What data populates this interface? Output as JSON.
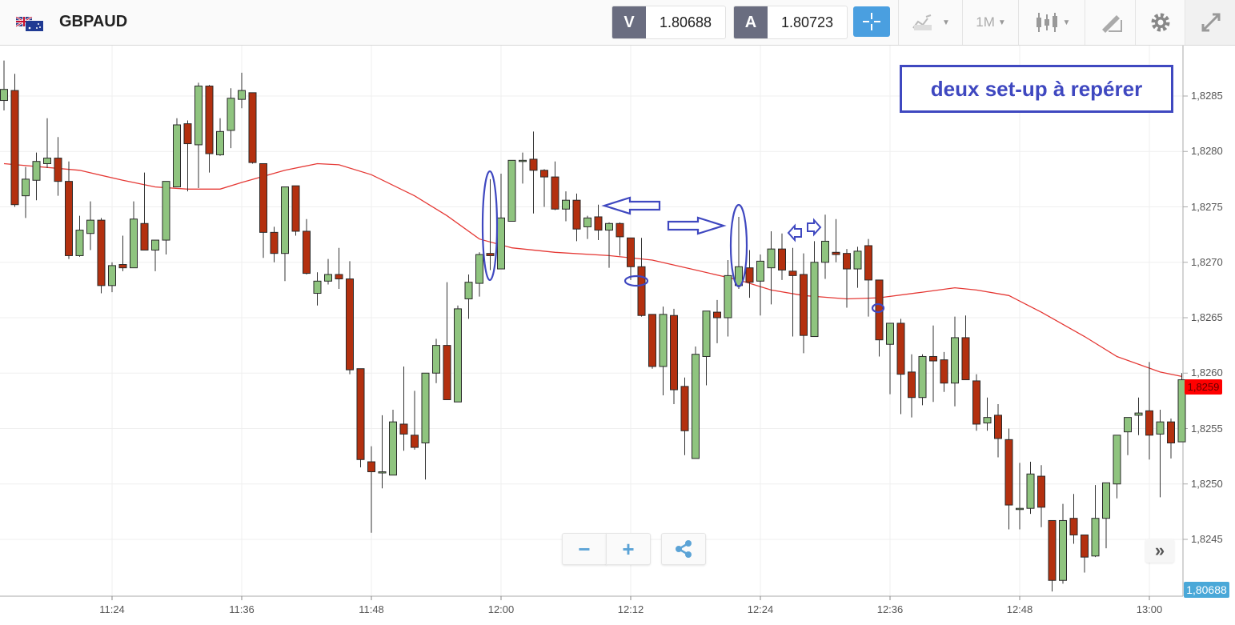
{
  "header": {
    "symbol": "GBPAUD",
    "flag_icon": "gb-au-flag-icon",
    "bid_tag": "V",
    "bid_value": "1.80688",
    "ask_tag": "A",
    "ask_value": "1.80723",
    "timeframe": "1M",
    "icons": [
      "crosshair-icon",
      "chart-type-icon",
      "candlestick-icon",
      "drawing-tool-icon",
      "gear-icon",
      "expand-icon"
    ]
  },
  "controls": {
    "zoom_out": "−",
    "zoom_in": "+",
    "share_icon": "share-icon",
    "scroll_forward": "»"
  },
  "annotation": {
    "text": "deux set-up à repérer",
    "color": "#3f48c0"
  },
  "axis": {
    "price_ticks": [
      "1,8285",
      "1,8280",
      "1,8275",
      "1,8270",
      "1,8265",
      "1,8260",
      "1,8255",
      "1,8250",
      "1,8245"
    ],
    "time_ticks": [
      "11:24",
      "11:36",
      "11:48",
      "12:00",
      "12:12",
      "12:24",
      "12:36",
      "12:48",
      "13:00"
    ],
    "last_price_label": "1,8259",
    "current_rate_label": "1,80688"
  },
  "colors": {
    "up": "#8fc47f",
    "down": "#b3300f",
    "ma": "#e53935",
    "last_price": "#ff0000",
    "accent": "#4a9fe0"
  },
  "chart_data": {
    "type": "candlestick",
    "symbol": "GBPAUD",
    "interval": "1 minute",
    "ylim": [
      1.824,
      1.829
    ],
    "grid": true,
    "columns": [
      "time",
      "open",
      "high",
      "low",
      "close"
    ],
    "candles": [
      [
        "11:14",
        1.82846,
        1.82882,
        1.82837,
        1.82856
      ],
      [
        "11:15",
        1.82855,
        1.8287,
        1.8275,
        1.82752
      ],
      [
        "11:16",
        1.8276,
        1.82786,
        1.8274,
        1.82775
      ],
      [
        "11:17",
        1.82774,
        1.82799,
        1.82756,
        1.82791
      ],
      [
        "11:18",
        1.82789,
        1.8283,
        1.82785,
        1.82794
      ],
      [
        "11:19",
        1.82794,
        1.82813,
        1.8276,
        1.82773
      ],
      [
        "11:20",
        1.82773,
        1.82791,
        1.82703,
        1.82706
      ],
      [
        "11:21",
        1.82706,
        1.82742,
        1.82705,
        1.82729
      ],
      [
        "11:22",
        1.82726,
        1.82755,
        1.82711,
        1.82738
      ],
      [
        "11:23",
        1.82738,
        1.8274,
        1.82672,
        1.82679
      ],
      [
        "11:24",
        1.82679,
        1.827,
        1.82673,
        1.82697
      ],
      [
        "11:25",
        1.82698,
        1.82724,
        1.82692,
        1.82695
      ],
      [
        "11:26",
        1.82695,
        1.82755,
        1.82695,
        1.82739
      ],
      [
        "11:27",
        1.82735,
        1.82781,
        1.82711,
        1.82711
      ],
      [
        "11:28",
        1.82711,
        1.8272,
        1.82692,
        1.8272
      ],
      [
        "11:29",
        1.8272,
        1.82773,
        1.82707,
        1.82773
      ],
      [
        "11:30",
        1.82768,
        1.8283,
        1.82768,
        1.82824
      ],
      [
        "11:31",
        1.82825,
        1.82828,
        1.82764,
        1.82807
      ],
      [
        "11:32",
        1.82806,
        1.82862,
        1.82767,
        1.82859
      ],
      [
        "11:33",
        1.82859,
        1.8286,
        1.82781,
        1.82798
      ],
      [
        "11:34",
        1.82797,
        1.8283,
        1.82796,
        1.82818
      ],
      [
        "11:35",
        1.82819,
        1.82857,
        1.82803,
        1.82848
      ],
      [
        "11:36",
        1.82847,
        1.82871,
        1.82839,
        1.82855
      ],
      [
        "11:37",
        1.82853,
        1.82853,
        1.82789,
        1.8279
      ],
      [
        "11:38",
        1.82789,
        1.82789,
        1.82704,
        1.82727
      ],
      [
        "11:39",
        1.82727,
        1.82732,
        1.827,
        1.82708
      ],
      [
        "11:40",
        1.82708,
        1.82768,
        1.82683,
        1.82768
      ],
      [
        "11:41",
        1.82769,
        1.82769,
        1.82724,
        1.82728
      ],
      [
        "11:42",
        1.82728,
        1.82739,
        1.82689,
        1.8269
      ],
      [
        "11:43",
        1.82672,
        1.82691,
        1.82661,
        1.82683
      ],
      [
        "11:44",
        1.82683,
        1.82703,
        1.8268,
        1.82689
      ],
      [
        "11:45",
        1.82689,
        1.82713,
        1.82676,
        1.82685
      ],
      [
        "11:46",
        1.82685,
        1.82701,
        1.82599,
        1.82603
      ],
      [
        "11:47",
        1.82604,
        1.82604,
        1.82515,
        1.82522
      ],
      [
        "11:48",
        1.8252,
        1.82534,
        1.82456,
        1.82511
      ],
      [
        "11:49",
        1.82511,
        1.82562,
        1.82496,
        1.82511
      ],
      [
        "11:50",
        1.82508,
        1.82567,
        1.82508,
        1.82556
      ],
      [
        "11:51",
        1.82554,
        1.82606,
        1.8253,
        1.82545
      ],
      [
        "11:52",
        1.82544,
        1.82584,
        1.82531,
        1.82533
      ],
      [
        "11:53",
        1.82537,
        1.826,
        1.82504,
        1.826
      ],
      [
        "11:54",
        1.826,
        1.82631,
        1.82591,
        1.82625
      ],
      [
        "11:55",
        1.82625,
        1.82682,
        1.82576,
        1.82576
      ],
      [
        "11:56",
        1.82574,
        1.82661,
        1.82574,
        1.82658
      ],
      [
        "11:57",
        1.82667,
        1.82689,
        1.82649,
        1.82682
      ],
      [
        "11:58",
        1.82681,
        1.82709,
        1.82669,
        1.82707
      ],
      [
        "11:59",
        1.82708,
        1.82775,
        1.82693,
        1.82706
      ],
      [
        "12:00",
        1.82694,
        1.8278,
        1.82694,
        1.8274
      ],
      [
        "12:01",
        1.82737,
        1.82792,
        1.82737,
        1.82792
      ],
      [
        "12:02",
        1.82792,
        1.82799,
        1.82771,
        1.82792
      ],
      [
        "12:03",
        1.82793,
        1.82818,
        1.82744,
        1.82783
      ],
      [
        "12:04",
        1.82783,
        1.82784,
        1.8275,
        1.82777
      ],
      [
        "12:05",
        1.82777,
        1.82791,
        1.82747,
        1.82748
      ],
      [
        "12:06",
        1.82748,
        1.82764,
        1.82737,
        1.82756
      ],
      [
        "12:07",
        1.82756,
        1.82762,
        1.82719,
        1.8273
      ],
      [
        "12:08",
        1.82732,
        1.82742,
        1.82721,
        1.8274
      ],
      [
        "12:09",
        1.82741,
        1.82752,
        1.8272,
        1.82729
      ],
      [
        "12:10",
        1.82729,
        1.82736,
        1.82695,
        1.82735
      ],
      [
        "12:11",
        1.82735,
        1.82736,
        1.82706,
        1.82723
      ],
      [
        "12:12",
        1.82722,
        1.82722,
        1.82684,
        1.82696
      ],
      [
        "12:13",
        1.82696,
        1.82722,
        1.82651,
        1.82652
      ],
      [
        "12:14",
        1.82653,
        1.82653,
        1.82604,
        1.82606
      ],
      [
        "12:15",
        1.82606,
        1.8266,
        1.8258,
        1.82653
      ],
      [
        "12:16",
        1.82652,
        1.82658,
        1.82572,
        1.82585
      ],
      [
        "12:17",
        1.82588,
        1.82596,
        1.82526,
        1.82548
      ],
      [
        "12:18",
        1.82523,
        1.82624,
        1.82523,
        1.82617
      ],
      [
        "12:19",
        1.82615,
        1.82656,
        1.82589,
        1.82656
      ],
      [
        "12:20",
        1.82655,
        1.82666,
        1.82627,
        1.8265
      ],
      [
        "12:21",
        1.8265,
        1.82702,
        1.82633,
        1.82688
      ],
      [
        "12:22",
        1.82679,
        1.82741,
        1.82676,
        1.82696
      ],
      [
        "12:23",
        1.82695,
        1.82711,
        1.82668,
        1.82682
      ],
      [
        "12:24",
        1.82683,
        1.82707,
        1.82652,
        1.82701
      ],
      [
        "12:25",
        1.82695,
        1.82728,
        1.82662,
        1.82712
      ],
      [
        "12:26",
        1.82712,
        1.82726,
        1.82684,
        1.82693
      ],
      [
        "12:27",
        1.82692,
        1.82713,
        1.82633,
        1.82688
      ],
      [
        "12:28",
        1.82689,
        1.82708,
        1.82618,
        1.82634
      ],
      [
        "12:29",
        1.82633,
        1.82719,
        1.82633,
        1.827
      ],
      [
        "12:30",
        1.827,
        1.82743,
        1.82685,
        1.82719
      ],
      [
        "12:31",
        1.82709,
        1.82739,
        1.827,
        1.82707
      ],
      [
        "12:32",
        1.82708,
        1.82712,
        1.82659,
        1.82694
      ],
      [
        "12:33",
        1.82694,
        1.82714,
        1.82677,
        1.8271
      ],
      [
        "12:34",
        1.82715,
        1.82721,
        1.82651,
        1.82684
      ],
      [
        "12:35",
        1.82684,
        1.82684,
        1.82615,
        1.8263
      ],
      [
        "12:36",
        1.82626,
        1.82645,
        1.82581,
        1.82645
      ],
      [
        "12:37",
        1.82645,
        1.82649,
        1.82563,
        1.82599
      ],
      [
        "12:38",
        1.82601,
        1.82617,
        1.8256,
        1.82578
      ],
      [
        "12:39",
        1.82578,
        1.82617,
        1.82571,
        1.82615
      ],
      [
        "12:40",
        1.82615,
        1.82643,
        1.82574,
        1.82611
      ],
      [
        "12:41",
        1.82612,
        1.82619,
        1.82583,
        1.82591
      ],
      [
        "12:42",
        1.82591,
        1.82651,
        1.8257,
        1.82632
      ],
      [
        "12:43",
        1.82632,
        1.82652,
        1.82594,
        1.82594
      ],
      [
        "12:44",
        1.82593,
        1.82599,
        1.82548,
        1.82554
      ],
      [
        "12:45",
        1.82555,
        1.82578,
        1.82548,
        1.8256
      ],
      [
        "12:46",
        1.82562,
        1.82572,
        1.82524,
        1.82541
      ],
      [
        "12:47",
        1.8254,
        1.8255,
        1.82459,
        1.82481
      ],
      [
        "12:48",
        1.82478,
        1.82519,
        1.82459,
        1.82478
      ],
      [
        "12:49",
        1.82478,
        1.8252,
        1.82473,
        1.82509
      ],
      [
        "12:50",
        1.82507,
        1.82517,
        1.82461,
        1.82479
      ],
      [
        "12:51",
        1.82467,
        1.82467,
        1.82403,
        1.82413
      ],
      [
        "12:52",
        1.82413,
        1.82482,
        1.8241,
        1.82467
      ],
      [
        "12:53",
        1.82469,
        1.82491,
        1.82446,
        1.82454
      ],
      [
        "12:54",
        1.82454,
        1.82454,
        1.8242,
        1.82434
      ],
      [
        "12:55",
        1.82435,
        1.82499,
        1.82434,
        1.82469
      ],
      [
        "12:56",
        1.82469,
        1.82501,
        1.82442,
        1.82501
      ],
      [
        "12:57",
        1.825,
        1.82544,
        1.82487,
        1.82544
      ],
      [
        "12:58",
        1.82547,
        1.8256,
        1.82526,
        1.8256
      ],
      [
        "12:59",
        1.82562,
        1.82578,
        1.82544,
        1.82564
      ],
      [
        "13:00",
        1.82566,
        1.8261,
        1.82522,
        1.82544
      ],
      [
        "13:01",
        1.82545,
        1.82567,
        1.82488,
        1.82556
      ],
      [
        "13:02",
        1.82556,
        1.82559,
        1.82523,
        1.82537
      ],
      [
        "13:03",
        1.82538,
        1.826,
        1.82538,
        1.82594
      ]
    ],
    "moving_average": [
      [
        "11:14",
        1.82789
      ],
      [
        "11:21",
        1.82783
      ],
      [
        "11:25",
        1.82774
      ],
      [
        "11:28",
        1.82768
      ],
      [
        "11:31",
        1.82766
      ],
      [
        "11:34",
        1.82766
      ],
      [
        "11:36",
        1.82772
      ],
      [
        "11:40",
        1.82783
      ],
      [
        "11:43",
        1.82789
      ],
      [
        "11:45",
        1.82788
      ],
      [
        "11:48",
        1.82779
      ],
      [
        "11:52",
        1.8276
      ],
      [
        "11:55",
        1.82742
      ],
      [
        "11:58",
        1.82721
      ],
      [
        "12:01",
        1.82713
      ],
      [
        "12:05",
        1.82709
      ],
      [
        "12:10",
        1.82706
      ],
      [
        "12:14",
        1.82702
      ],
      [
        "12:18",
        1.82693
      ],
      [
        "12:22",
        1.82684
      ],
      [
        "12:25",
        1.82675
      ],
      [
        "12:28",
        1.8267
      ],
      [
        "12:32",
        1.82667
      ],
      [
        "12:35",
        1.82668
      ],
      [
        "12:39",
        1.82673
      ],
      [
        "12:42",
        1.82677
      ],
      [
        "12:44",
        1.82675
      ],
      [
        "12:47",
        1.8267
      ],
      [
        "12:50",
        1.82655
      ],
      [
        "12:54",
        1.82633
      ],
      [
        "12:57",
        1.82615
      ],
      [
        "13:01",
        1.82601
      ],
      [
        "13:03",
        1.82597
      ]
    ]
  }
}
